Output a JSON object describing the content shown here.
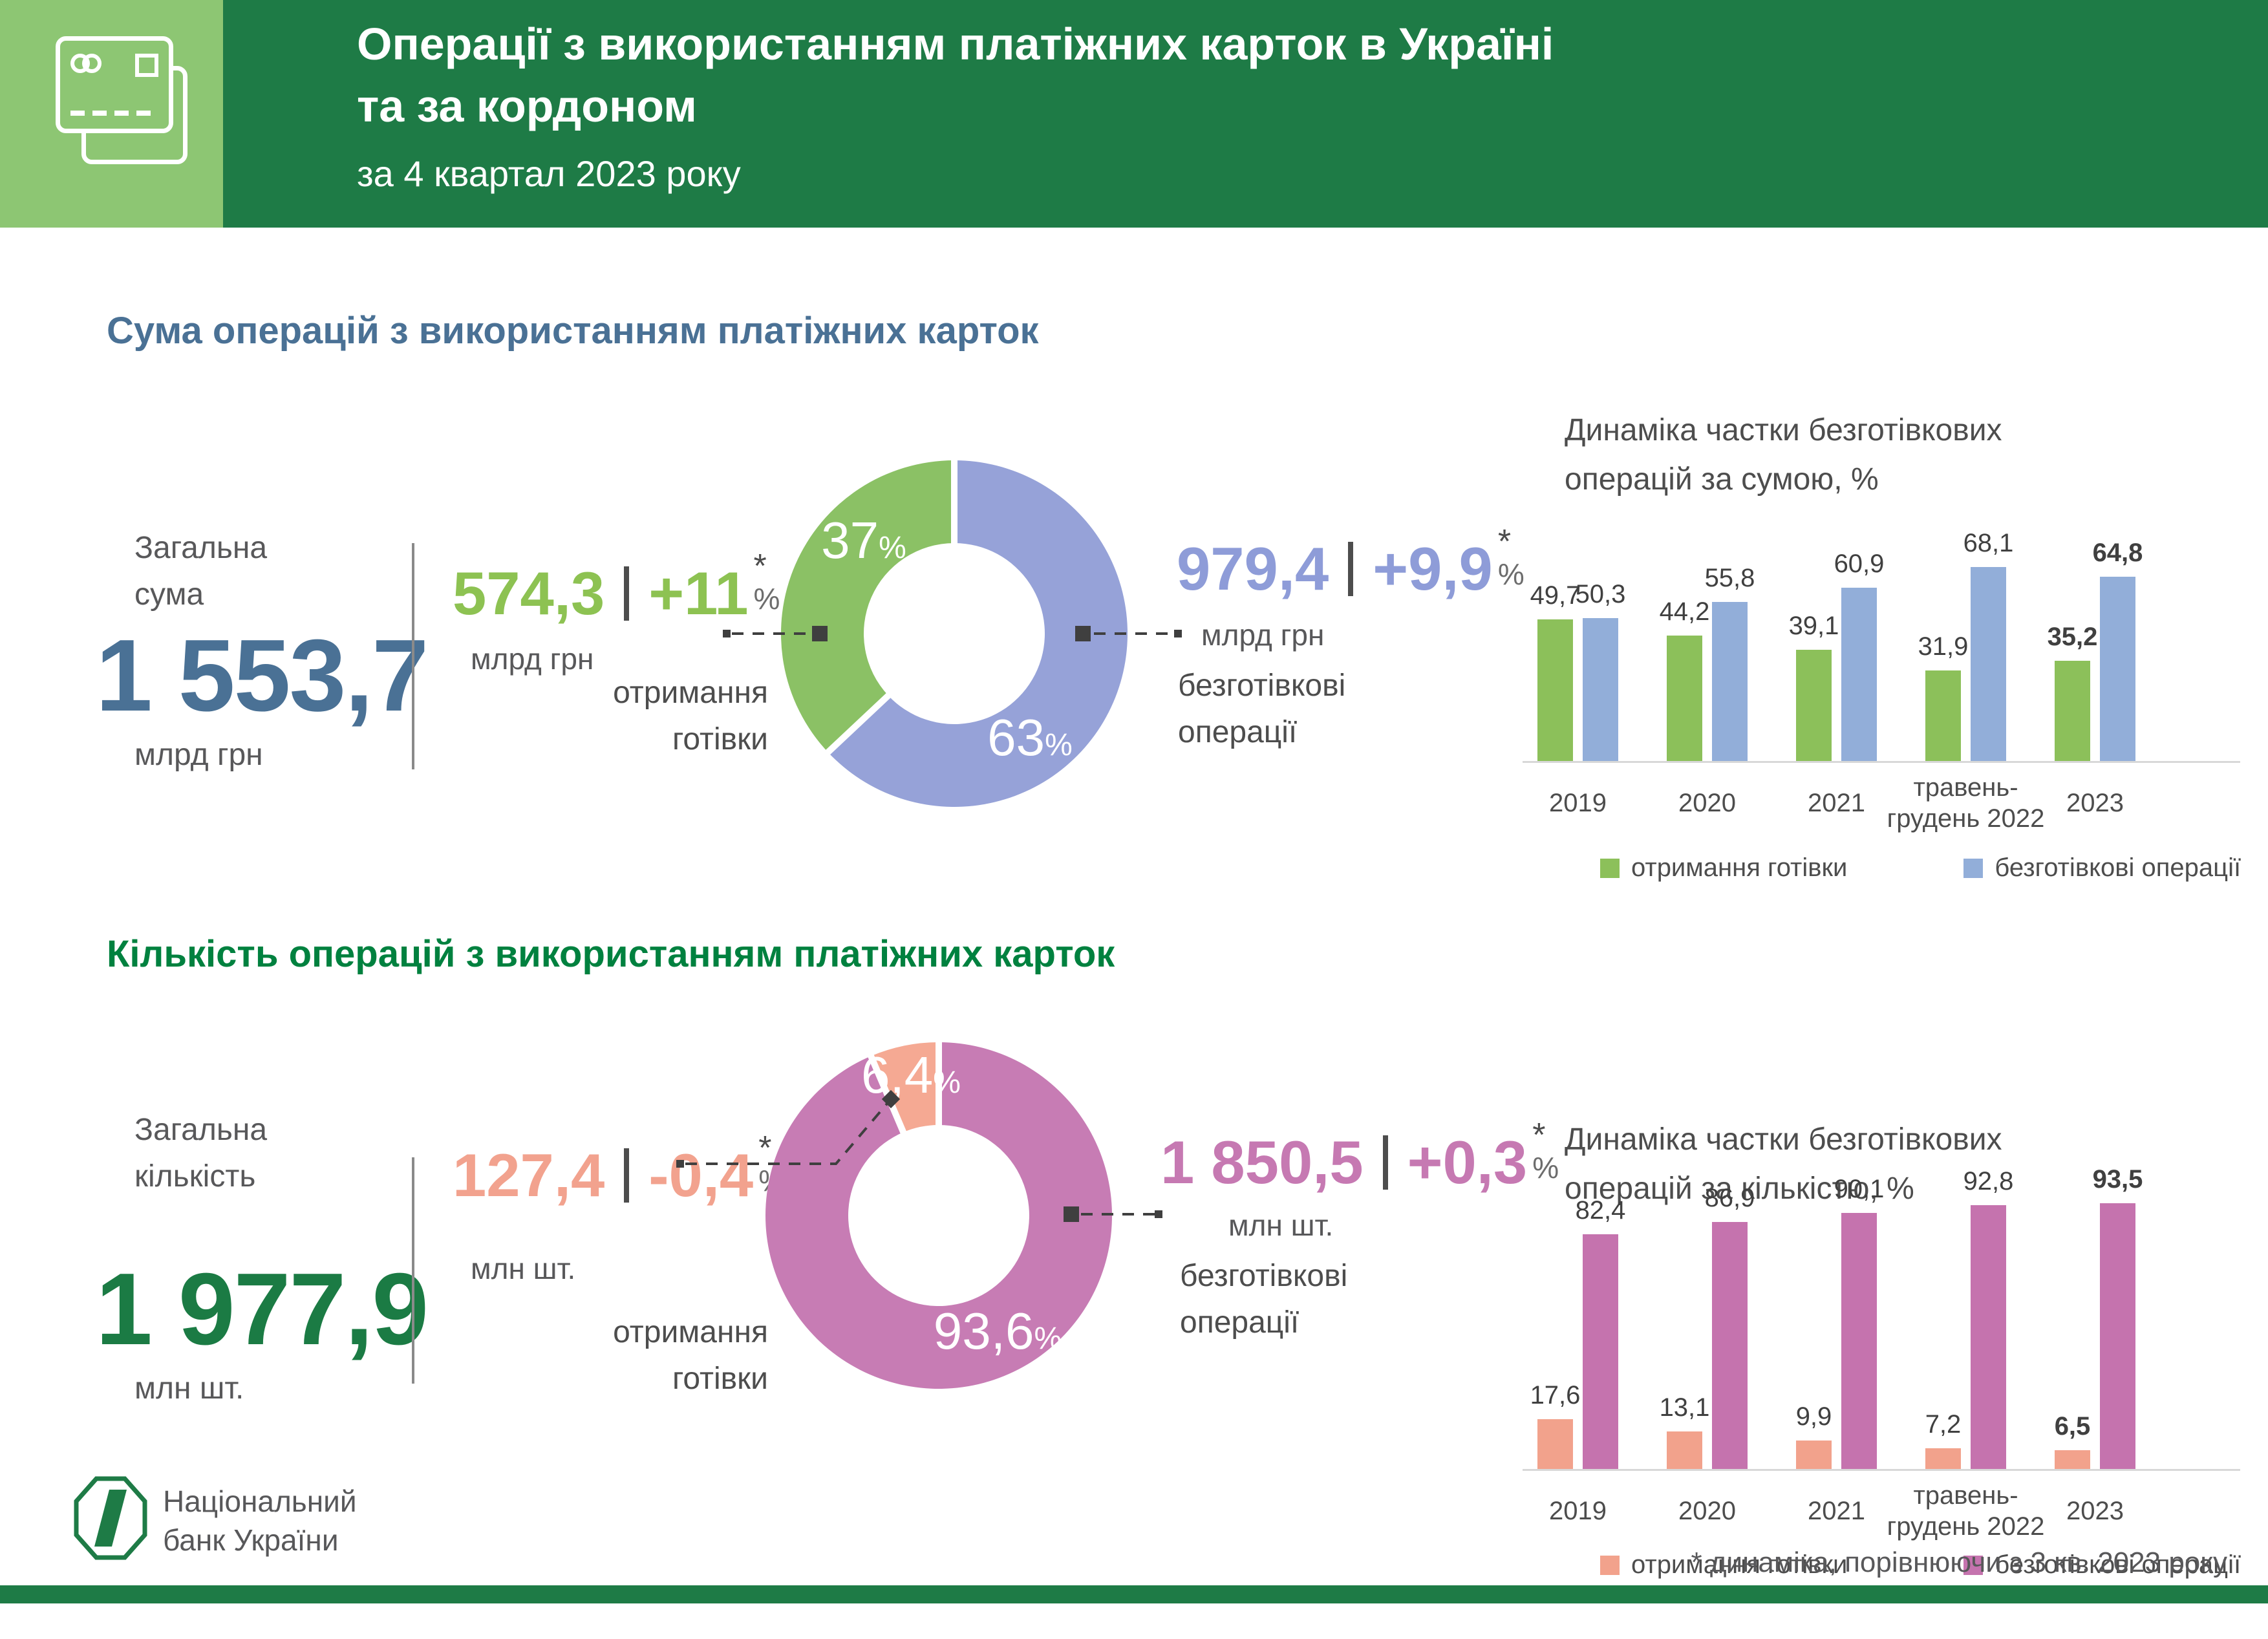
{
  "header": {
    "title_line1": "Операції з використанням платіжних карток в Україні",
    "title_line2": "та за кордоном",
    "subtitle": "за 4 квартал 2023 року",
    "icon": "payment-cards-icon"
  },
  "sections": {
    "sum": {
      "title": "Сума операцій з використанням платіжних карток",
      "total": {
        "label": "Загальна\nсума",
        "value": "1 553,7",
        "unit": "млрд грн"
      },
      "cash": {
        "value": "574,3",
        "change": "+11",
        "footnote_mark": "*",
        "percent_sign": "%",
        "unit": "млрд грн",
        "label": "отримання\nготівки"
      },
      "cashless": {
        "value": "979,4",
        "change": "+9,9",
        "footnote_mark": "*",
        "percent_sign": "%",
        "unit": "млрд грн",
        "label": "безготівкові\nоперації"
      }
    },
    "count": {
      "title": "Кількість операцій з використанням платіжних карток",
      "total": {
        "label": "Загальна\nкількість",
        "value": "1 977,9",
        "unit": "млн шт."
      },
      "cash": {
        "value": "127,4",
        "change": "-0,4",
        "footnote_mark": "*",
        "percent_sign": "%",
        "unit": "млн шт.",
        "label": "отримання\nготівки"
      },
      "cashless": {
        "value": "1 850,5",
        "change": "+0,3",
        "footnote_mark": "*",
        "percent_sign": "%",
        "unit": "млн шт.",
        "label": "безготівкові\nоперації"
      }
    }
  },
  "chart_data": [
    {
      "type": "donut",
      "title": "Сума операцій з використанням платіжних карток",
      "percent_sign": "%",
      "slices": [
        {
          "label": "безготівкові операції",
          "value": 63,
          "display": "63",
          "color": "#96A2D8"
        },
        {
          "label": "отримання готівки",
          "value": 37,
          "display": "37",
          "color": "#8BC165"
        }
      ]
    },
    {
      "type": "bar",
      "title": "Динаміка частки безготівкових\nоперацій за сумою, %",
      "categories": [
        "2019",
        "2020",
        "2021",
        "травень-грудень 2022",
        "2023"
      ],
      "emphasized_category_index": 4,
      "ylim": [
        0,
        100
      ],
      "legend_position": "bottom",
      "series": [
        {
          "name": "отримання готівки",
          "color": "#8CC05A",
          "values": [
            49.7,
            44.2,
            39.1,
            31.9,
            35.2
          ],
          "labels": [
            "49,7",
            "44,2",
            "39,1",
            "31,9",
            "35,2"
          ]
        },
        {
          "name": "безготівкові операції",
          "color": "#92AED9",
          "values": [
            50.3,
            55.8,
            60.9,
            68.1,
            64.8
          ],
          "labels": [
            "50,3",
            "55,8",
            "60,9",
            "68,1",
            "64,8"
          ]
        }
      ]
    },
    {
      "type": "donut",
      "title": "Кількість операцій з використанням платіжних карток",
      "percent_sign": "%",
      "slices": [
        {
          "label": "безготівкові операції",
          "value": 93.6,
          "display": "93,6",
          "color": "#C77CB4"
        },
        {
          "label": "отримання готівки",
          "value": 6.4,
          "display": "6,4",
          "color": "#F5A993"
        }
      ]
    },
    {
      "type": "bar",
      "title": "Динаміка частки безготівкових\nоперацій за кількістю, %",
      "categories": [
        "2019",
        "2020",
        "2021",
        "травень-грудень 2022",
        "2023"
      ],
      "emphasized_category_index": 4,
      "ylim": [
        0,
        100
      ],
      "legend_position": "bottom",
      "series": [
        {
          "name": "отримання готівки",
          "color": "#F2A28C",
          "values": [
            17.6,
            13.1,
            9.9,
            7.2,
            6.5
          ],
          "labels": [
            "17,6",
            "13,1",
            "9,9",
            "7,2",
            "6,5"
          ]
        },
        {
          "name": "безготівкові операції",
          "color": "#C573AE",
          "values": [
            82.4,
            86.9,
            90.1,
            92.8,
            93.5
          ],
          "labels": [
            "82,4",
            "86,9",
            "90,1",
            "92,8",
            "93,5"
          ]
        }
      ]
    }
  ],
  "footer": {
    "bank_name": "Національний\nбанк України",
    "footnote": "* динаміка, порівнюючи з 3 кв. 2023 року"
  },
  "colors": {
    "brand_dark_green": "#1E7B46",
    "brand_light_green": "#8DC673",
    "steel_blue": "#4A7195",
    "title_green": "#00813F",
    "stat_green": "#8DC252",
    "stat_periwinkle": "#8E9CD8",
    "stat_salmon": "#F2A28E",
    "stat_pink": "#C679B2",
    "text_dark": "#4D4D4D",
    "text_gray": "#58585A",
    "axis_gray": "#D8D8D8"
  }
}
